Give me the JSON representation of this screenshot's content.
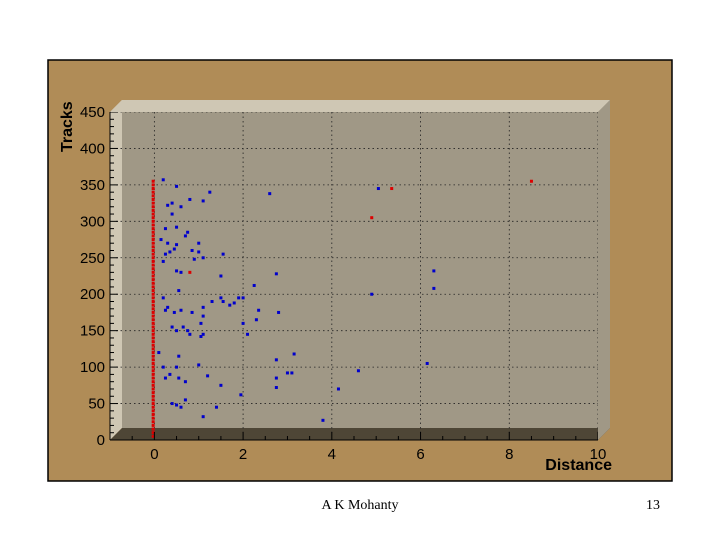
{
  "colors": {
    "frame": "#b08c57",
    "frame_border": "#000000",
    "plot_bg": "#a09886",
    "wall": "#cfc7b4",
    "floor": "#4e4636",
    "series_a": "#0000cc",
    "series_b": "#dd0000"
  },
  "footer": {
    "author": "A K Mohanty",
    "page_number": "13"
  },
  "chart_data": {
    "type": "scatter",
    "xlabel": "Distance",
    "ylabel": "Tracks",
    "xlim": [
      -1,
      10
    ],
    "ylim": [
      0,
      450
    ],
    "xticks": [
      0,
      2,
      4,
      6,
      8,
      10
    ],
    "yticks": [
      0,
      50,
      100,
      150,
      200,
      250,
      300,
      350,
      400,
      450
    ],
    "grid": true,
    "legend": "none",
    "series": [
      {
        "color": "#0000cc",
        "points": [
          [
            0.2,
            357
          ],
          [
            0.5,
            348
          ],
          [
            0.4,
            325
          ],
          [
            0.3,
            322
          ],
          [
            0.6,
            320
          ],
          [
            0.8,
            330
          ],
          [
            1.1,
            328
          ],
          [
            1.25,
            340
          ],
          [
            2.6,
            338
          ],
          [
            5.05,
            345
          ],
          [
            0.4,
            310
          ],
          [
            0.25,
            290
          ],
          [
            0.5,
            292
          ],
          [
            0.75,
            285
          ],
          [
            0.7,
            280
          ],
          [
            0.15,
            275
          ],
          [
            0.3,
            270
          ],
          [
            0.5,
            268
          ],
          [
            0.45,
            262
          ],
          [
            0.35,
            258
          ],
          [
            0.25,
            255
          ],
          [
            0.85,
            260
          ],
          [
            1.0,
            258
          ],
          [
            1.1,
            250
          ],
          [
            1.0,
            270
          ],
          [
            1.55,
            255
          ],
          [
            0.9,
            248
          ],
          [
            0.2,
            245
          ],
          [
            0.5,
            232
          ],
          [
            0.6,
            230
          ],
          [
            1.5,
            225
          ],
          [
            2.75,
            228
          ],
          [
            2.25,
            212
          ],
          [
            0.55,
            205
          ],
          [
            0.2,
            195
          ],
          [
            0.3,
            182
          ],
          [
            0.25,
            178
          ],
          [
            0.45,
            175
          ],
          [
            0.6,
            178
          ],
          [
            0.85,
            175
          ],
          [
            1.1,
            182
          ],
          [
            1.3,
            190
          ],
          [
            1.5,
            195
          ],
          [
            1.55,
            190
          ],
          [
            1.7,
            185
          ],
          [
            1.8,
            188
          ],
          [
            1.9,
            195
          ],
          [
            2.0,
            195
          ],
          [
            2.35,
            178
          ],
          [
            2.8,
            175
          ],
          [
            1.1,
            170
          ],
          [
            1.05,
            160
          ],
          [
            0.65,
            155
          ],
          [
            0.75,
            150
          ],
          [
            0.8,
            145
          ],
          [
            0.4,
            155
          ],
          [
            0.5,
            150
          ],
          [
            1.1,
            145
          ],
          [
            1.05,
            142
          ],
          [
            2.1,
            145
          ],
          [
            2.3,
            165
          ],
          [
            2.0,
            160
          ],
          [
            4.9,
            200
          ],
          [
            6.3,
            232
          ],
          [
            6.3,
            208
          ],
          [
            0.1,
            120
          ],
          [
            0.55,
            115
          ],
          [
            0.2,
            100
          ],
          [
            0.5,
            100
          ],
          [
            1.0,
            103
          ],
          [
            1.2,
            88
          ],
          [
            0.35,
            90
          ],
          [
            0.55,
            85
          ],
          [
            0.7,
            80
          ],
          [
            0.25,
            85
          ],
          [
            1.5,
            75
          ],
          [
            2.75,
            110
          ],
          [
            2.75,
            85
          ],
          [
            2.75,
            72
          ],
          [
            3.0,
            92
          ],
          [
            3.1,
            92
          ],
          [
            3.15,
            118
          ],
          [
            4.6,
            95
          ],
          [
            4.15,
            70
          ],
          [
            3.8,
            27
          ],
          [
            6.15,
            105
          ],
          [
            1.95,
            62
          ],
          [
            0.4,
            50
          ],
          [
            0.5,
            48
          ],
          [
            0.6,
            45
          ],
          [
            0.7,
            55
          ],
          [
            1.4,
            45
          ],
          [
            1.1,
            32
          ]
        ]
      },
      {
        "color": "#dd0000",
        "points": [
          [
            0.0,
            355
          ],
          [
            0.0,
            350
          ],
          [
            0.0,
            345
          ],
          [
            0.0,
            340
          ],
          [
            0.0,
            335
          ],
          [
            0.0,
            330
          ],
          [
            0.0,
            325
          ],
          [
            0.0,
            320
          ],
          [
            0.0,
            315
          ],
          [
            0.0,
            310
          ],
          [
            0.0,
            305
          ],
          [
            0.0,
            300
          ],
          [
            0.0,
            295
          ],
          [
            0.0,
            290
          ],
          [
            0.0,
            285
          ],
          [
            0.0,
            280
          ],
          [
            0.0,
            275
          ],
          [
            0.0,
            270
          ],
          [
            0.0,
            265
          ],
          [
            0.0,
            260
          ],
          [
            0.0,
            255
          ],
          [
            0.0,
            250
          ],
          [
            0.0,
            245
          ],
          [
            0.0,
            240
          ],
          [
            0.0,
            235
          ],
          [
            0.0,
            230
          ],
          [
            0.0,
            225
          ],
          [
            0.0,
            220
          ],
          [
            0.0,
            215
          ],
          [
            0.0,
            210
          ],
          [
            0.0,
            205
          ],
          [
            0.0,
            200
          ],
          [
            0.0,
            195
          ],
          [
            0.0,
            190
          ],
          [
            0.0,
            185
          ],
          [
            0.0,
            180
          ],
          [
            0.0,
            175
          ],
          [
            0.0,
            170
          ],
          [
            0.0,
            165
          ],
          [
            0.0,
            160
          ],
          [
            0.0,
            155
          ],
          [
            0.0,
            150
          ],
          [
            0.0,
            145
          ],
          [
            0.0,
            140
          ],
          [
            0.0,
            135
          ],
          [
            0.0,
            130
          ],
          [
            0.0,
            125
          ],
          [
            0.0,
            120
          ],
          [
            0.0,
            115
          ],
          [
            0.0,
            110
          ],
          [
            0.0,
            105
          ],
          [
            0.0,
            100
          ],
          [
            0.0,
            95
          ],
          [
            0.0,
            90
          ],
          [
            0.0,
            85
          ],
          [
            0.0,
            80
          ],
          [
            0.0,
            75
          ],
          [
            0.0,
            70
          ],
          [
            0.0,
            65
          ],
          [
            0.0,
            60
          ],
          [
            0.0,
            55
          ],
          [
            0.0,
            50
          ],
          [
            0.0,
            45
          ],
          [
            0.0,
            40
          ],
          [
            0.0,
            35
          ],
          [
            0.0,
            30
          ],
          [
            0.0,
            25
          ],
          [
            0.0,
            20
          ],
          [
            0.0,
            15
          ],
          [
            0.0,
            10
          ],
          [
            0.0,
            5
          ],
          [
            0.8,
            230
          ],
          [
            4.9,
            305
          ],
          [
            5.35,
            345
          ],
          [
            8.5,
            355
          ]
        ]
      }
    ]
  }
}
